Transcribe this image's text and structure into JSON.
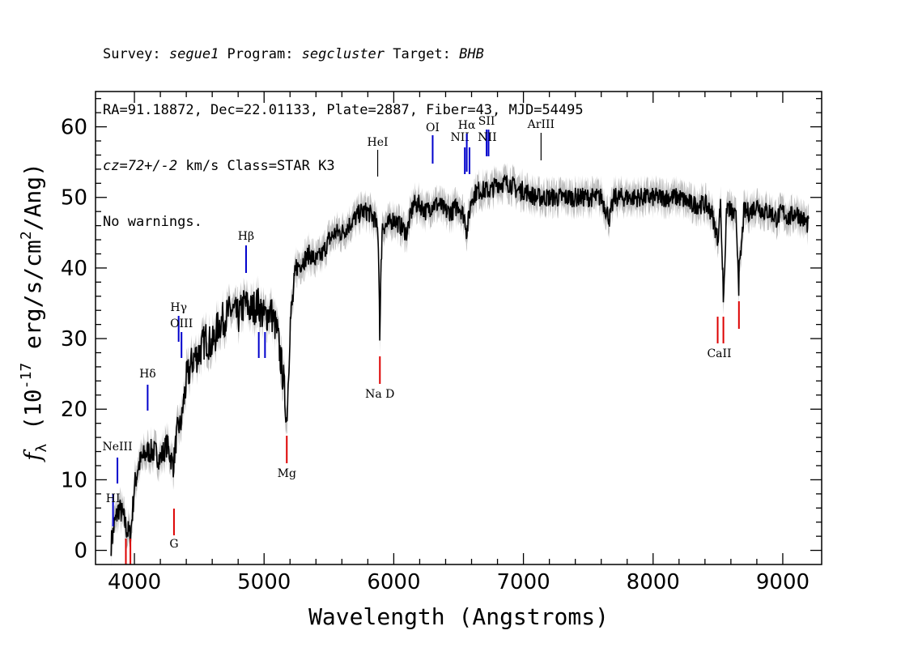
{
  "header": {
    "line1": {
      "survey_label": "Survey: ",
      "survey": "segue1",
      "program_label": " Program: ",
      "program": "segcluster",
      "target_label": " Target: ",
      "target": "BHB"
    },
    "line2": "RA=91.18872, Dec=22.01133, Plate=2887, Fiber=43, MJD=54495",
    "line3": {
      "cz": "cz=72+/-2",
      "rest": " km/s Class=STAR K3"
    },
    "line4": "No warnings."
  },
  "chart_data": {
    "type": "line",
    "xlabel": "Wavelength (Angstroms)",
    "ylabel": "f_λ (10^-17 erg/s/cm^2/Ang)",
    "xlim": [
      3700,
      9300
    ],
    "ylim": [
      -2,
      65
    ],
    "x_ticks": [
      4000,
      5000,
      6000,
      7000,
      8000,
      9000
    ],
    "y_ticks": [
      0,
      10,
      20,
      30,
      40,
      50,
      60
    ],
    "grid": false,
    "colors": {
      "flux": "#000000",
      "error": "#bdbdbd",
      "emission": "#0000cc",
      "absorption": "#dd0000",
      "other": "#000000"
    },
    "series": [
      {
        "x": [
          3820,
          3850,
          3880,
          3910,
          3940,
          3970,
          4000,
          4030,
          4060,
          4100,
          4150,
          4200,
          4250,
          4300,
          4330,
          4360,
          4400,
          4450,
          4500,
          4550,
          4600,
          4650,
          4700,
          4750,
          4800,
          4850,
          4900,
          4950,
          5000,
          5050,
          5100,
          5150,
          5175,
          5200,
          5250,
          5300,
          5350,
          5400,
          5450,
          5500,
          5550,
          5600,
          5650,
          5700,
          5750,
          5800,
          5850,
          5880,
          5893,
          5910,
          5950,
          6000,
          6050,
          6100,
          6150,
          6200,
          6250,
          6300,
          6350,
          6400,
          6450,
          6500,
          6550,
          6563,
          6600,
          6650,
          6700,
          6750,
          6800,
          6850,
          6900,
          6950,
          7000,
          7100,
          7200,
          7300,
          7400,
          7500,
          7600,
          7665,
          7700,
          7800,
          7900,
          8000,
          8100,
          8200,
          8300,
          8400,
          8450,
          8498,
          8520,
          8542,
          8570,
          8600,
          8640,
          8662,
          8700,
          8750,
          8800,
          8850,
          8900,
          8950,
          9000,
          9050,
          9100,
          9150,
          9200
        ],
        "y": [
          1,
          4,
          6,
          5,
          3,
          2,
          9,
          12,
          13,
          14,
          14,
          13,
          15,
          12,
          17,
          18,
          24,
          27,
          28,
          30,
          29,
          32,
          33,
          34,
          33,
          35,
          34,
          35,
          33,
          34,
          31,
          24,
          18,
          32,
          40,
          41,
          42,
          41,
          42,
          44,
          45,
          45,
          46,
          47,
          48,
          48,
          47,
          45,
          31,
          46,
          46,
          47,
          46,
          45,
          49,
          49,
          48,
          49,
          49,
          48,
          48,
          49,
          47,
          45,
          50,
          51,
          51,
          51,
          52,
          52,
          52,
          51,
          51,
          50,
          50,
          50,
          50,
          50,
          50,
          47,
          50,
          50,
          50,
          50,
          50,
          50,
          49,
          49,
          48,
          44,
          49,
          36,
          49,
          48,
          47,
          38,
          48,
          48,
          49,
          48,
          48,
          47,
          48,
          47,
          48,
          47,
          46
        ]
      }
    ],
    "emission_lines": [
      {
        "name": "HI",
        "x": 3835
      },
      {
        "name": "NeIII",
        "x": 3869
      },
      {
        "name": "Hδ",
        "x": 4102
      },
      {
        "name": "Hγ",
        "x": 4341
      },
      {
        "name": "OIII",
        "x": 4363
      },
      {
        "name": "Hβ",
        "x": 4861
      },
      {
        "name": "OIII",
        "x": 4959
      },
      {
        "name": "OIII",
        "x": 5007
      },
      {
        "name": "OI",
        "x": 6300
      },
      {
        "name": "NII",
        "x": 6548
      },
      {
        "name": "Hα",
        "x": 6563
      },
      {
        "name": "NII",
        "x": 6584
      },
      {
        "name": "SII",
        "x": 6716
      },
      {
        "name": "SII",
        "x": 6731
      }
    ],
    "absorption_lines": [
      {
        "name": "G",
        "x": 4305
      },
      {
        "name": "Mg",
        "x": 5175
      },
      {
        "name": "Na D",
        "x": 5893
      },
      {
        "name": "CaII",
        "x": 8498
      },
      {
        "name": "CaII",
        "x": 8542
      },
      {
        "name": "CaII",
        "x": 8662
      },
      {
        "name": "",
        "x": 3934
      },
      {
        "name": "",
        "x": 3969
      }
    ],
    "other_lines": [
      {
        "name": "HeI",
        "x": 5876
      },
      {
        "name": "ArIII",
        "x": 7136
      }
    ]
  }
}
